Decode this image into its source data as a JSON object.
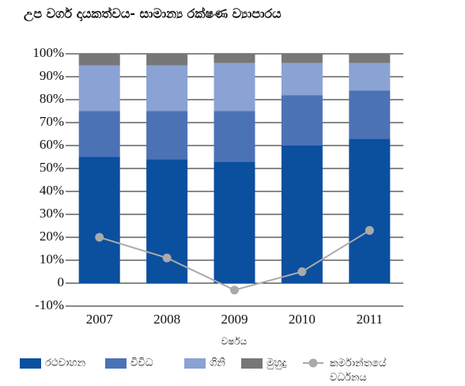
{
  "chart_data": {
    "type": "bar",
    "stacked": true,
    "title": "උප වර්ග දායකත්වය- සාමාන්‍ය රක්ෂණ ව්‍යාපාරය",
    "x_label": "වර්ෂය",
    "categories": [
      "2007",
      "2008",
      "2009",
      "2010",
      "2011"
    ],
    "series": [
      {
        "name": "රථවාහන",
        "color": "#0b4f9f",
        "values": [
          55,
          54,
          53,
          60,
          63
        ]
      },
      {
        "name": "විවිධ",
        "color": "#4c72b6",
        "values": [
          20,
          21,
          22,
          22,
          21
        ]
      },
      {
        "name": "ගිනි",
        "color": "#8aa2d4",
        "values": [
          20,
          20,
          21,
          14,
          12
        ]
      },
      {
        "name": "මුහුදු",
        "color": "#777777",
        "values": [
          5,
          5,
          4,
          4,
          4
        ]
      },
      {
        "name": "කර්මාන්තයේ වර්ධනය",
        "color": "#aaaaaa",
        "type": "line",
        "values": [
          20,
          11,
          -3,
          5,
          23
        ]
      }
    ],
    "ylim": [
      -10,
      100
    ],
    "yticks": [
      {
        "value": -10,
        "label": "-10%"
      },
      0,
      {
        "value": 10,
        "label": "10%"
      },
      {
        "value": 20,
        "label": "20%"
      },
      {
        "value": 30,
        "label": "30%"
      },
      {
        "value": 40,
        "label": "40%"
      },
      {
        "value": 50,
        "label": "50%"
      },
      {
        "value": 60,
        "label": "60%"
      },
      {
        "value": 70,
        "label": "70%"
      },
      {
        "value": 80,
        "label": "80%"
      },
      {
        "value": 90,
        "label": "90%"
      },
      {
        "value": 100,
        "label": "100%"
      }
    ],
    "grid": true,
    "legend": "bottom"
  }
}
